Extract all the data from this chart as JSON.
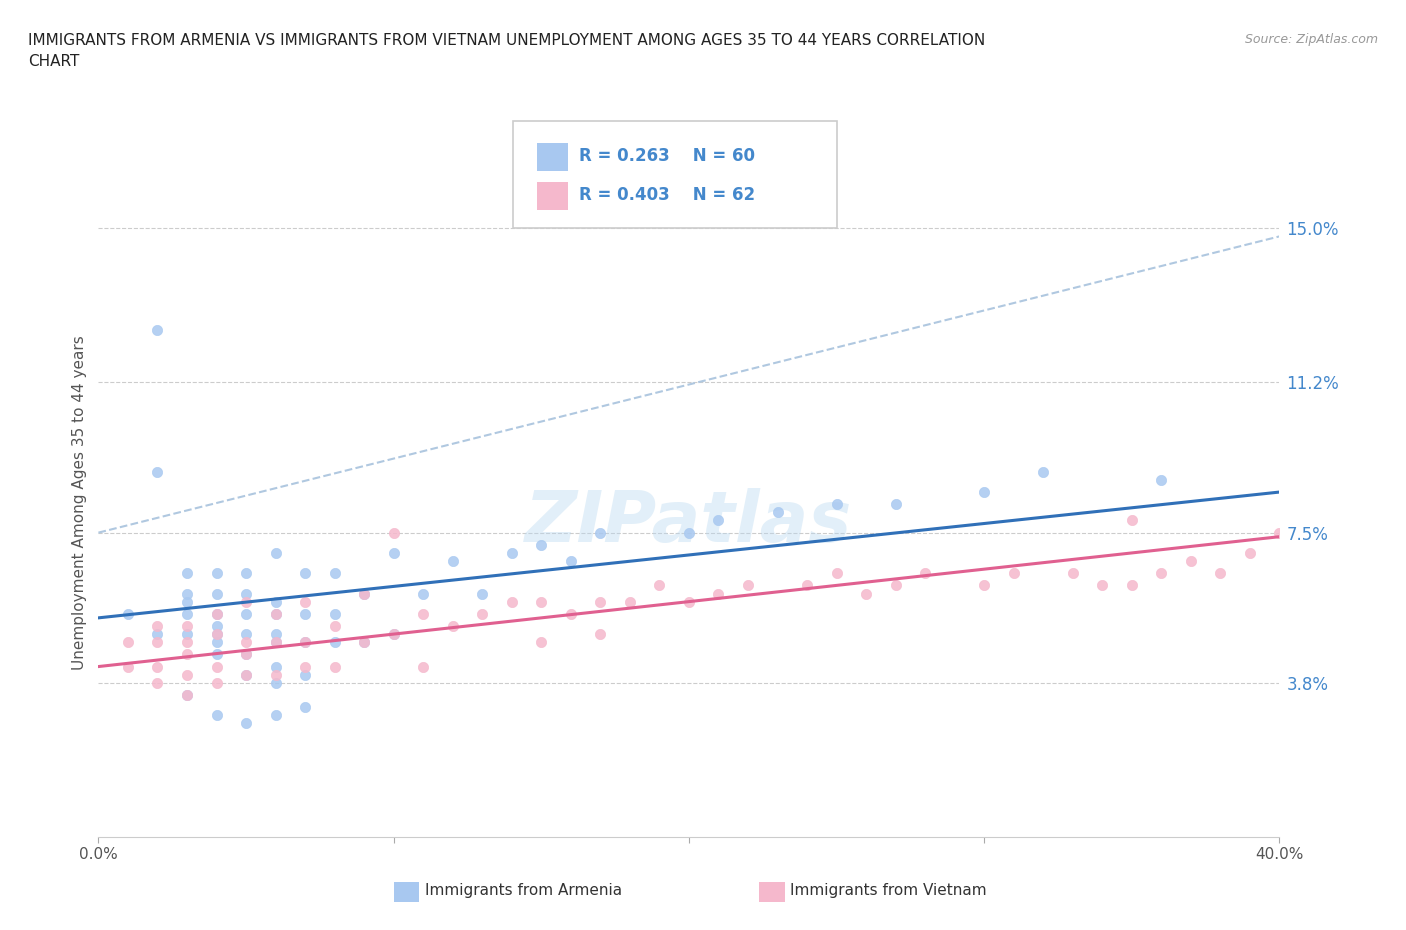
{
  "title": "IMMIGRANTS FROM ARMENIA VS IMMIGRANTS FROM VIETNAM UNEMPLOYMENT AMONG AGES 35 TO 44 YEARS CORRELATION\nCHART",
  "source": "Source: ZipAtlas.com",
  "ylabel": "Unemployment Among Ages 35 to 44 years",
  "xlim": [
    0.0,
    0.4
  ],
  "ylim": [
    0.0,
    0.165
  ],
  "yticks": [
    0.038,
    0.075,
    0.112,
    0.15
  ],
  "ytick_labels": [
    "3.8%",
    "7.5%",
    "11.2%",
    "15.0%"
  ],
  "xticks": [
    0.0,
    0.1,
    0.2,
    0.3,
    0.4
  ],
  "xtick_labels": [
    "0.0%",
    "",
    "",
    "",
    "40.0%"
  ],
  "color_armenia": "#a8c8f0",
  "color_vietnam": "#f5b8cc",
  "color_trend_armenia": "#3070b8",
  "color_trend_vietnam": "#e06090",
  "color_label": "#4488cc",
  "color_dashed": "#b0c8e0",
  "watermark": "ZIPatlas",
  "armenia_x": [
    0.01,
    0.02,
    0.02,
    0.03,
    0.03,
    0.03,
    0.03,
    0.03,
    0.04,
    0.04,
    0.04,
    0.04,
    0.04,
    0.04,
    0.04,
    0.05,
    0.05,
    0.05,
    0.05,
    0.05,
    0.05,
    0.06,
    0.06,
    0.06,
    0.06,
    0.06,
    0.06,
    0.06,
    0.07,
    0.07,
    0.07,
    0.07,
    0.08,
    0.08,
    0.08,
    0.09,
    0.09,
    0.1,
    0.1,
    0.11,
    0.12,
    0.13,
    0.14,
    0.15,
    0.16,
    0.17,
    0.2,
    0.21,
    0.23,
    0.25,
    0.27,
    0.3,
    0.32,
    0.36,
    0.02,
    0.03,
    0.04,
    0.05,
    0.06,
    0.07
  ],
  "armenia_y": [
    0.055,
    0.125,
    0.05,
    0.05,
    0.055,
    0.058,
    0.06,
    0.065,
    0.045,
    0.048,
    0.05,
    0.052,
    0.055,
    0.06,
    0.065,
    0.04,
    0.045,
    0.05,
    0.055,
    0.06,
    0.065,
    0.038,
    0.042,
    0.048,
    0.05,
    0.055,
    0.058,
    0.07,
    0.04,
    0.048,
    0.055,
    0.065,
    0.048,
    0.055,
    0.065,
    0.048,
    0.06,
    0.05,
    0.07,
    0.06,
    0.068,
    0.06,
    0.07,
    0.072,
    0.068,
    0.075,
    0.075,
    0.078,
    0.08,
    0.082,
    0.082,
    0.085,
    0.09,
    0.088,
    0.09,
    0.035,
    0.03,
    0.028,
    0.03,
    0.032
  ],
  "vietnam_x": [
    0.01,
    0.01,
    0.02,
    0.02,
    0.02,
    0.02,
    0.03,
    0.03,
    0.03,
    0.03,
    0.03,
    0.04,
    0.04,
    0.04,
    0.04,
    0.05,
    0.05,
    0.05,
    0.05,
    0.06,
    0.06,
    0.06,
    0.07,
    0.07,
    0.07,
    0.08,
    0.08,
    0.09,
    0.09,
    0.1,
    0.11,
    0.11,
    0.12,
    0.13,
    0.14,
    0.15,
    0.15,
    0.16,
    0.17,
    0.17,
    0.18,
    0.19,
    0.2,
    0.21,
    0.22,
    0.24,
    0.25,
    0.26,
    0.27,
    0.28,
    0.3,
    0.31,
    0.33,
    0.34,
    0.35,
    0.36,
    0.37,
    0.38,
    0.39,
    0.1,
    0.35,
    0.4
  ],
  "vietnam_y": [
    0.042,
    0.048,
    0.038,
    0.042,
    0.048,
    0.052,
    0.035,
    0.04,
    0.045,
    0.048,
    0.052,
    0.038,
    0.042,
    0.05,
    0.055,
    0.04,
    0.045,
    0.048,
    0.058,
    0.04,
    0.048,
    0.055,
    0.042,
    0.048,
    0.058,
    0.042,
    0.052,
    0.048,
    0.06,
    0.05,
    0.042,
    0.055,
    0.052,
    0.055,
    0.058,
    0.048,
    0.058,
    0.055,
    0.05,
    0.058,
    0.058,
    0.062,
    0.058,
    0.06,
    0.062,
    0.062,
    0.065,
    0.06,
    0.062,
    0.065,
    0.062,
    0.065,
    0.065,
    0.062,
    0.062,
    0.065,
    0.068,
    0.065,
    0.07,
    0.075,
    0.078,
    0.075
  ],
  "armenia_trend_x": [
    0.0,
    0.4
  ],
  "armenia_trend_y": [
    0.054,
    0.085
  ],
  "vietnam_trend_x": [
    0.0,
    0.4
  ],
  "vietnam_trend_y": [
    0.042,
    0.074
  ],
  "dashed_line_x": [
    0.0,
    0.4
  ],
  "dashed_line_y": [
    0.075,
    0.148
  ]
}
